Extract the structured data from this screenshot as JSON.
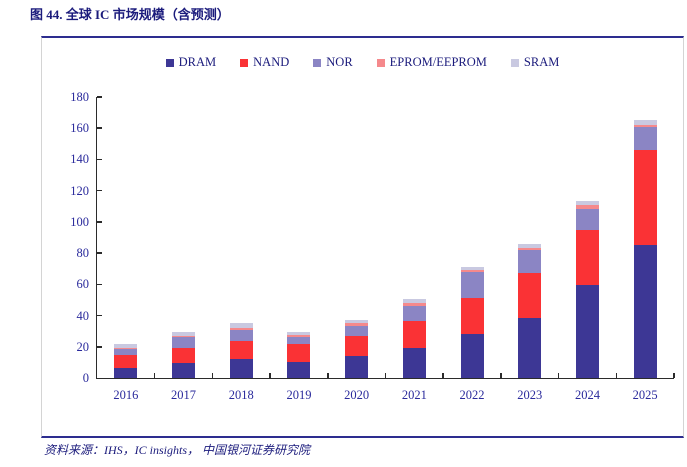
{
  "page": {
    "title": "图 44. 全球 IC 市场规模（含预测）",
    "footer": "资料来源：IHS，IC insights， 中国银河证券研究院"
  },
  "colors": {
    "title_navy": "#1b1b7c",
    "axis_label_blue": "#2a2a9c",
    "rule_navy": "#2d2d8f",
    "axis_line": "#2b2b2b",
    "dram": "#3d3795",
    "nand": "#fa3235",
    "nor": "#8b85c4",
    "eprom": "#f5898c",
    "sram": "#c9c9e1"
  },
  "chart_data": {
    "type": "bar",
    "stacked": true,
    "title": "全球 IC 市场规模（含预测）",
    "categories": [
      "2016",
      "2017",
      "2018",
      "2019",
      "2020",
      "2021",
      "2022",
      "2023",
      "2024",
      "2025"
    ],
    "series": [
      {
        "name": "DRAM",
        "color": "#3d3795",
        "values": [
          6.5,
          9.5,
          12.0,
          10.5,
          14.0,
          19.5,
          28.0,
          38.5,
          59.5,
          85.0
        ]
      },
      {
        "name": "NAND",
        "color": "#fa3235",
        "values": [
          8.0,
          10.0,
          11.5,
          11.0,
          13.0,
          17.0,
          23.0,
          29.0,
          35.5,
          61.0
        ]
      },
      {
        "name": "NOR",
        "color": "#8b85c4",
        "values": [
          4.0,
          6.5,
          7.5,
          4.5,
          6.5,
          9.5,
          17.0,
          14.5,
          13.5,
          14.5
        ]
      },
      {
        "name": "EPROM/EEPROM",
        "color": "#f5898c",
        "values": [
          0.7,
          1.2,
          1.3,
          1.3,
          1.8,
          2.0,
          1.4,
          1.5,
          2.5,
          1.7
        ]
      },
      {
        "name": "SRAM",
        "color": "#c9c9e1",
        "values": [
          2.5,
          2.3,
          2.7,
          2.0,
          2.0,
          2.5,
          2.0,
          2.5,
          2.5,
          2.8
        ]
      }
    ],
    "totals": [
      21.7,
      29.5,
      35.0,
      29.3,
      37.3,
      50.5,
      71.4,
      86.0,
      113.5,
      165.0
    ],
    "xlabel": "",
    "ylabel": "",
    "ylim": [
      0,
      180
    ],
    "ytick_step": 20,
    "grid": false,
    "legend_position": "top"
  }
}
